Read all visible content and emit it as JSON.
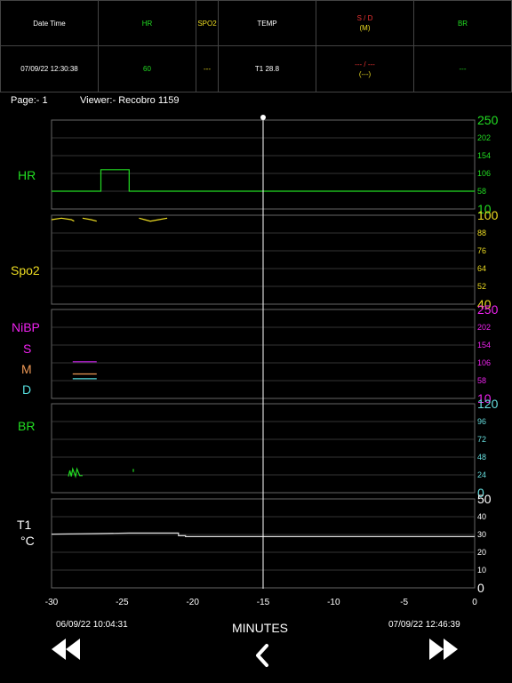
{
  "table": {
    "headers": [
      {
        "text": "Date Time",
        "color": "#ffffff"
      },
      {
        "text": "HR",
        "color": "#22dd22"
      },
      {
        "text": "SPO2",
        "color": "#eedd22"
      },
      {
        "text": "TEMP",
        "color": "#ffffff"
      },
      {
        "text": "S / D",
        "sub": "(M)",
        "color": "#ee3333",
        "sub_color": "#eedd22"
      },
      {
        "text": "BR",
        "color": "#22dd22"
      }
    ],
    "values": [
      {
        "text": "07/09/22 12:30:38",
        "color": "#ffffff"
      },
      {
        "text": "60",
        "color": "#22dd22"
      },
      {
        "text": "---",
        "color": "#eedd22"
      },
      {
        "text": "T1 28.8",
        "color": "#ffffff"
      },
      {
        "text": "--- / ---",
        "sub": "(---)",
        "color": "#ee3333",
        "sub_color": "#eedd22"
      },
      {
        "text": "---",
        "color": "#22dd22"
      }
    ]
  },
  "info": {
    "page": "Page:- 1",
    "viewer": "Viewer:- Recobro 1159"
  },
  "labels": {
    "hr": "HR",
    "spo2": "Spo2",
    "nibp": "NiBP",
    "s": "S",
    "m": "M",
    "d": "D",
    "br": "BR",
    "t1": "T1",
    "celsius": "°C"
  },
  "footer": {
    "start_time": "06/09/22 10:04:31",
    "end_time": "07/09/22 12:46:39",
    "axis_label": "MINUTES"
  },
  "buttons": {
    "rewind_icon": "rewind-icon",
    "back_icon": "chevron-left-icon",
    "forward_icon": "fast-forward-icon"
  },
  "colors": {
    "hr": "#22dd22",
    "spo2": "#eedd22",
    "nibp": "#ee22ee",
    "systolic": "#cc22ee",
    "mean": "#ee9955",
    "diastolic": "#55dddd",
    "br": "#22dd22",
    "br_axis": "#66dddd",
    "temp": "#dddddd",
    "grid": "#444444"
  },
  "chart_data": {
    "type": "line",
    "x_ticks": [
      -30,
      -25,
      -20,
      -15,
      -10,
      -5,
      0
    ],
    "xlabel": "MINUTES",
    "xlim": [
      -30,
      0
    ],
    "cursor_x": -15,
    "panels": [
      {
        "name": "HR",
        "ylim": [
          10,
          250
        ],
        "ticks": [
          250,
          202,
          154,
          106,
          58,
          10
        ],
        "series": [
          {
            "x": [
              -30,
              -26.5,
              -26.5,
              -24.5,
              -24.5,
              0
            ],
            "y": [
              58,
              58,
              116,
              116,
              58,
              58
            ]
          }
        ]
      },
      {
        "name": "Spo2",
        "ylim": [
          40,
          100
        ],
        "ticks": [
          100,
          88,
          76,
          64,
          52,
          40
        ],
        "series": [
          {
            "x": [
              -30,
              -29.3,
              -28.6,
              -28.4
            ],
            "y": [
              97,
              98,
              97,
              96
            ]
          },
          {
            "x": [
              -27.8,
              -27.2,
              -26.8
            ],
            "y": [
              98,
              97,
              96
            ]
          },
          {
            "x": [
              -23.8,
              -23.4,
              -23,
              -22.4,
              -21.8
            ],
            "y": [
              98,
              97,
              96,
              97,
              98
            ]
          }
        ]
      },
      {
        "name": "NiBP",
        "ylim": [
          10,
          250
        ],
        "ticks": [
          250,
          202,
          154,
          106,
          58,
          10
        ],
        "series": [
          {
            "name": "S",
            "x": [
              -28.5,
              -26.8
            ],
            "y": [
              109,
              109
            ]
          },
          {
            "name": "M",
            "x": [
              -28.5,
              -26.8
            ],
            "y": [
              76,
              76
            ]
          },
          {
            "name": "D",
            "x": [
              -28.5,
              -26.8
            ],
            "y": [
              63,
              63
            ]
          }
        ]
      },
      {
        "name": "BR",
        "ylim": [
          0,
          120
        ],
        "ticks": [
          120,
          96,
          72,
          48,
          24,
          0
        ],
        "series": [
          {
            "x": [
              -28.8,
              -28.7,
              -28.6,
              -28.5,
              -28.3,
              -28.2,
              -28.0,
              -27.8
            ],
            "y": [
              22,
              30,
              22,
              32,
              22,
              32,
              23,
              23
            ]
          },
          {
            "x": [
              -24.2,
              -24.2
            ],
            "y": [
              28,
              32
            ]
          }
        ]
      },
      {
        "name": "T1",
        "ylim": [
          0,
          50
        ],
        "ticks": [
          50,
          40,
          30,
          20,
          10,
          0
        ],
        "series": [
          {
            "x": [
              -30,
              -27,
              -24.5,
              -22,
              -21,
              -21,
              -20.5,
              -20.5,
              0
            ],
            "y": [
              30.2,
              30.5,
              30.8,
              30.8,
              30.8,
              29.3,
              29.3,
              28.8,
              28.8
            ]
          }
        ]
      }
    ]
  }
}
